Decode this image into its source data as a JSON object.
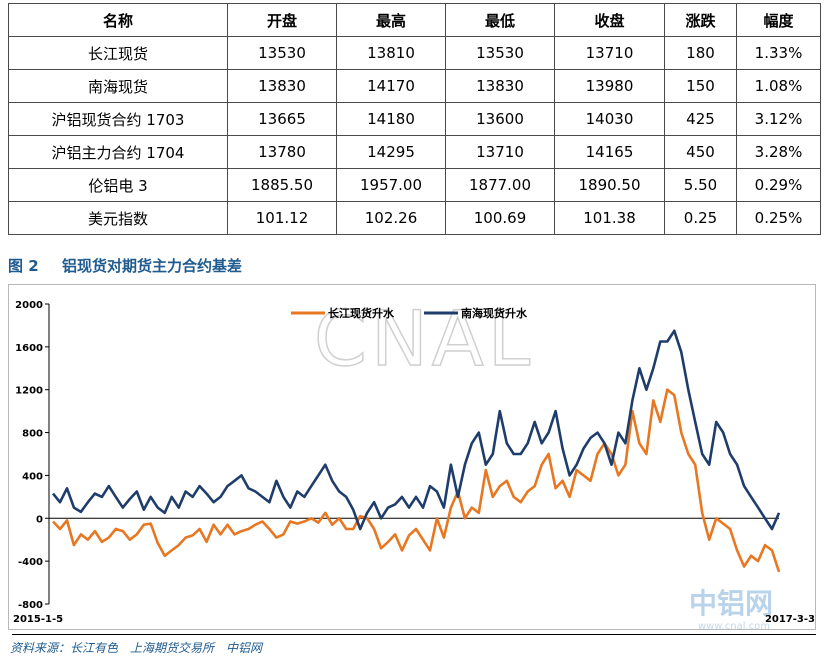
{
  "table": {
    "headers": [
      "名称",
      "开盘",
      "最高",
      "最低",
      "收盘",
      "涨跌",
      "幅度"
    ],
    "rows": [
      [
        "长江现货",
        "13530",
        "13810",
        "13530",
        "13710",
        "180",
        "1.33%"
      ],
      [
        "南海现货",
        "13830",
        "14170",
        "13830",
        "13980",
        "150",
        "1.08%"
      ],
      [
        "沪铝现货合约 1703",
        "13665",
        "14180",
        "13600",
        "14030",
        "425",
        "3.12%"
      ],
      [
        "沪铝主力合约 1704",
        "13780",
        "14295",
        "13710",
        "14165",
        "450",
        "3.28%"
      ],
      [
        "伦铝电 3",
        "1885.50",
        "1957.00",
        "1877.00",
        "1890.50",
        "5.50",
        "0.29%"
      ],
      [
        "美元指数",
        "101.12",
        "102.26",
        "100.69",
        "101.38",
        "0.25",
        "0.25%"
      ]
    ]
  },
  "figure": {
    "number": "图 2",
    "title": "铝现货对期货主力合约基差"
  },
  "source": "资料来源：长江有色　上海期货交易所　中铝网",
  "watermark": {
    "big": "CNAL",
    "cn": "中铝网",
    "url": "www.cnal.com"
  },
  "chart_data": {
    "type": "line",
    "title": "",
    "xlabel": "",
    "ylabel": "",
    "x_range": [
      "2015-1-5",
      "2017-3-3"
    ],
    "x_tick_labels": [
      "2015-1-5",
      "2017-3-3"
    ],
    "ylim": [
      -800,
      2000
    ],
    "y_ticks": [
      -800,
      -400,
      0,
      400,
      800,
      1200,
      1600,
      2000
    ],
    "grid": false,
    "legend": "top-center",
    "series": [
      {
        "name": "长江现货升水",
        "color": "#e87722",
        "values": [
          -30,
          -100,
          -20,
          -250,
          -150,
          -200,
          -120,
          -220,
          -180,
          -100,
          -120,
          -200,
          -150,
          -60,
          -50,
          -230,
          -350,
          -300,
          -250,
          -180,
          -160,
          -100,
          -220,
          -60,
          -150,
          -60,
          -150,
          -120,
          -100,
          -60,
          -30,
          -100,
          -180,
          -150,
          -30,
          -50,
          -30,
          0,
          -40,
          50,
          -60,
          0,
          -100,
          -100,
          20,
          0,
          -100,
          -280,
          -220,
          -150,
          -300,
          -160,
          -100,
          -200,
          -300,
          0,
          -180,
          100,
          250,
          0,
          100,
          50,
          450,
          200,
          300,
          350,
          200,
          150,
          250,
          300,
          500,
          600,
          280,
          350,
          200,
          450,
          400,
          350,
          600,
          700,
          600,
          400,
          500,
          1000,
          700,
          600,
          1100,
          900,
          1200,
          1150,
          800,
          600,
          500,
          50,
          -200,
          0,
          -50,
          -100,
          -300,
          -450,
          -350,
          -400,
          -250,
          -300,
          -500
        ]
      },
      {
        "name": "南海现货升水",
        "color": "#1f3d6b",
        "values": [
          230,
          150,
          280,
          100,
          60,
          150,
          230,
          200,
          300,
          200,
          100,
          180,
          250,
          80,
          200,
          100,
          50,
          200,
          100,
          250,
          200,
          300,
          230,
          150,
          200,
          300,
          350,
          400,
          280,
          250,
          200,
          150,
          350,
          200,
          100,
          250,
          200,
          300,
          400,
          500,
          350,
          250,
          200,
          80,
          -100,
          50,
          150,
          0,
          100,
          130,
          200,
          100,
          200,
          100,
          300,
          250,
          100,
          500,
          200,
          500,
          700,
          800,
          500,
          600,
          1000,
          700,
          600,
          600,
          700,
          900,
          700,
          800,
          1000,
          650,
          400,
          500,
          650,
          750,
          800,
          700,
          500,
          800,
          700,
          1100,
          1400,
          1200,
          1400,
          1650,
          1650,
          1750,
          1550,
          1200,
          900,
          600,
          500,
          900,
          800,
          600,
          500,
          300,
          200,
          100,
          0,
          -100,
          50
        ]
      }
    ]
  }
}
